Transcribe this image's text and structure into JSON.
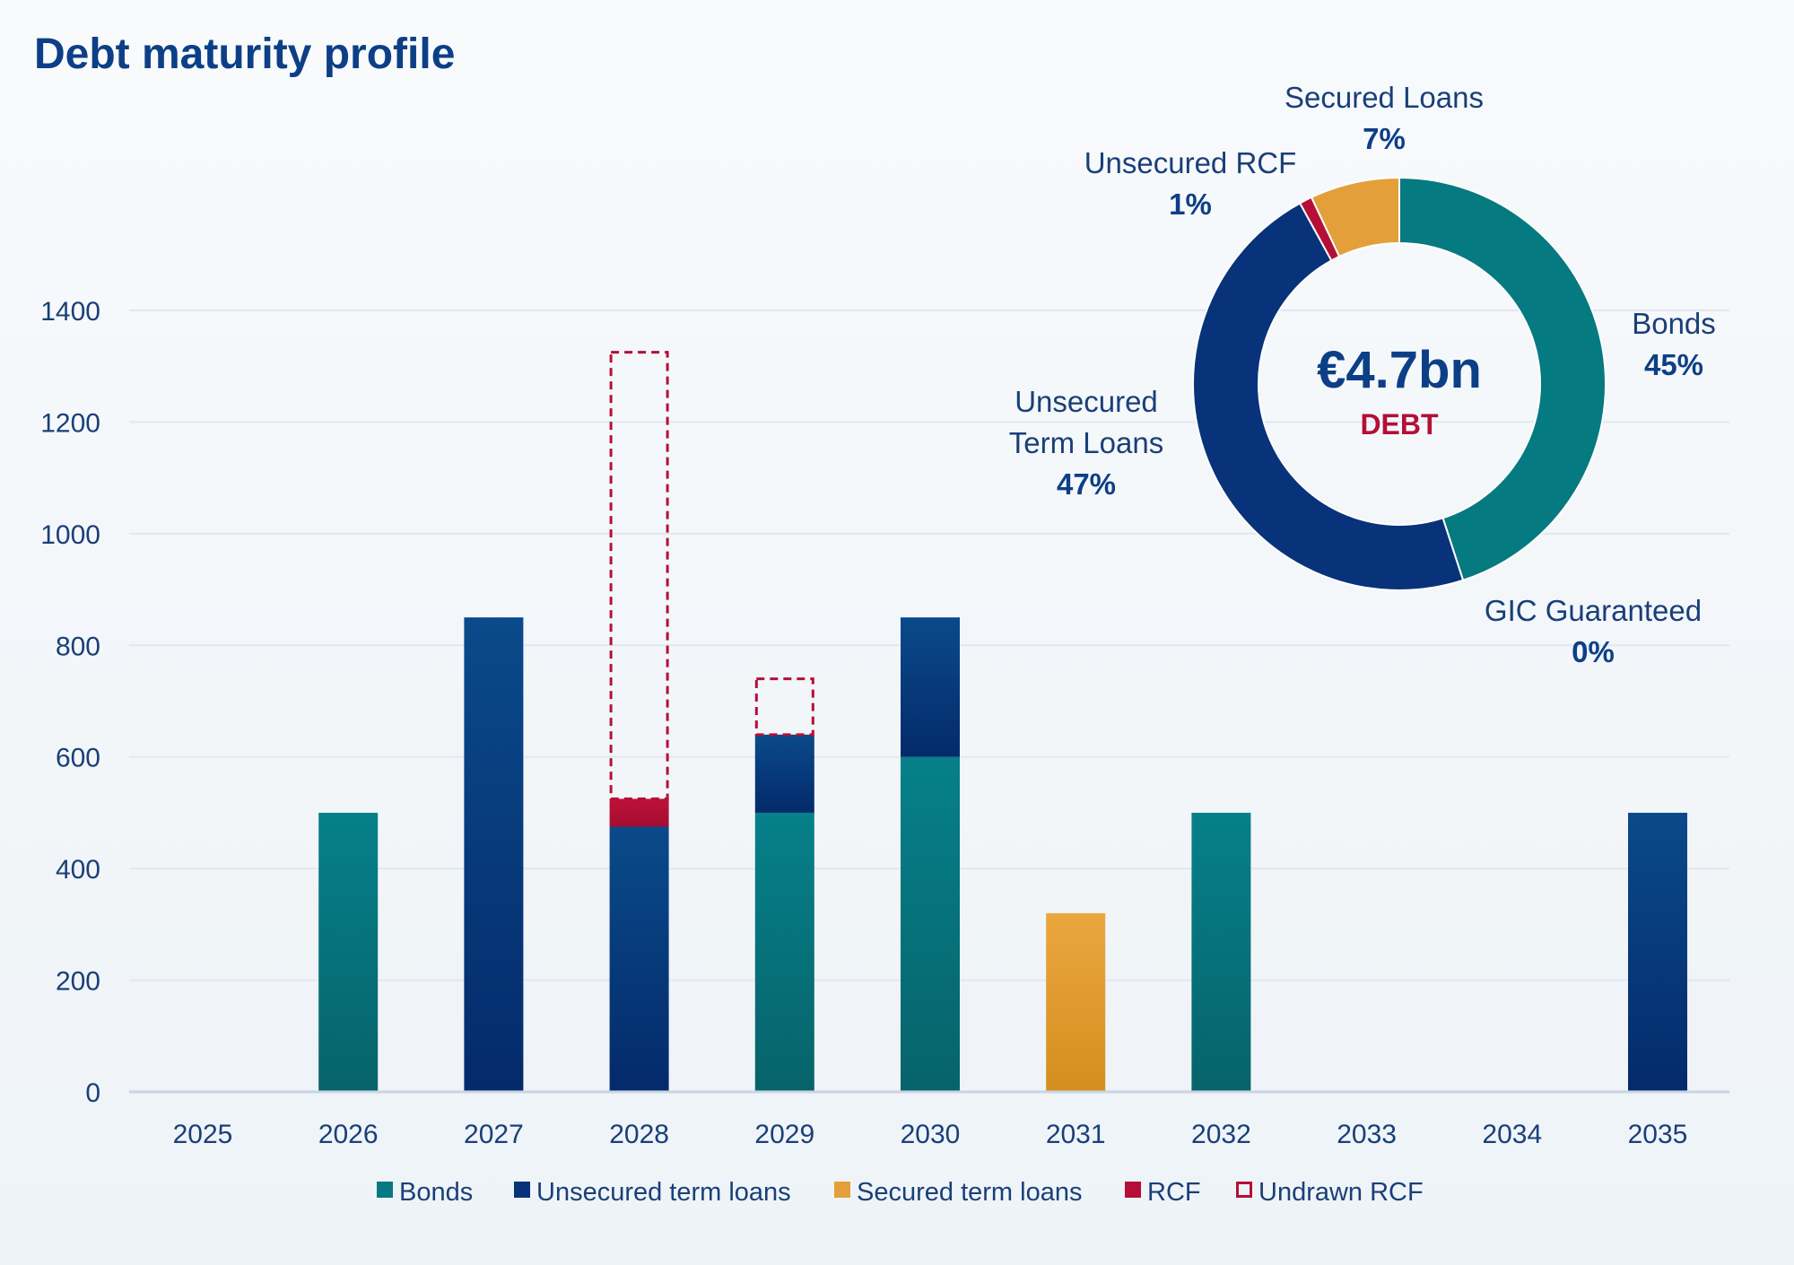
{
  "title": "Debt maturity profile",
  "colors": {
    "bonds": "#057a80",
    "unsecured_term_loans": "#08337a",
    "secured_term_loans": "#e3a03a",
    "rcf": "#b50f37",
    "undrawn_rcf": "#b50f37",
    "title": "#0d3f86",
    "axis_text": "#1a3f78",
    "grid": "#e1e8ef"
  },
  "chart_data": [
    {
      "type": "bar",
      "stacked": true,
      "title": "Debt maturity profile",
      "xlabel": "",
      "ylabel": "",
      "ylim": [
        0,
        1400
      ],
      "yticks": [
        0,
        200,
        400,
        600,
        800,
        1000,
        1200,
        1400
      ],
      "grid": true,
      "legend_position": "bottom",
      "categories": [
        "2025",
        "2026",
        "2027",
        "2028",
        "2029",
        "2030",
        "2031",
        "2032",
        "2033",
        "2034",
        "2035"
      ],
      "series": [
        {
          "name": "Bonds",
          "color_key": "bonds",
          "style": "solid",
          "values": [
            0,
            500,
            0,
            0,
            500,
            600,
            0,
            500,
            0,
            0,
            0
          ]
        },
        {
          "name": "Unsecured term loans",
          "color_key": "unsecured_term_loans",
          "style": "solid",
          "values": [
            0,
            0,
            850,
            475,
            140,
            250,
            0,
            0,
            0,
            0,
            500
          ]
        },
        {
          "name": "Secured term loans",
          "color_key": "secured_term_loans",
          "style": "solid",
          "values": [
            0,
            0,
            0,
            0,
            0,
            0,
            320,
            0,
            0,
            0,
            0
          ]
        },
        {
          "name": "RCF",
          "color_key": "rcf",
          "style": "solid",
          "values": [
            0,
            0,
            0,
            50,
            0,
            0,
            0,
            0,
            0,
            0,
            0
          ]
        },
        {
          "name": "Undrawn RCF",
          "color_key": "undrawn_rcf",
          "style": "dashed",
          "values": [
            0,
            0,
            0,
            800,
            100,
            0,
            0,
            0,
            0,
            0,
            0
          ]
        }
      ]
    },
    {
      "type": "pie",
      "donut": true,
      "center_value": "€4.7bn",
      "center_label": "DEBT",
      "slices": [
        {
          "label": "Bonds",
          "value": 45,
          "value_label": "45%",
          "color_key": "bonds"
        },
        {
          "label": "GIC Guaranteed",
          "value": 0,
          "value_label": "0%",
          "color_key": "bonds"
        },
        {
          "label": "Unsecured Term Loans",
          "label_lines": [
            "Unsecured",
            "Term Loans"
          ],
          "value": 47,
          "value_label": "47%",
          "color_key": "unsecured_term_loans"
        },
        {
          "label": "Unsecured RCF",
          "value": 1,
          "value_label": "1%",
          "color_key": "rcf"
        },
        {
          "label": "Secured Loans",
          "value": 7,
          "value_label": "7%",
          "color_key": "secured_term_loans"
        }
      ]
    }
  ]
}
